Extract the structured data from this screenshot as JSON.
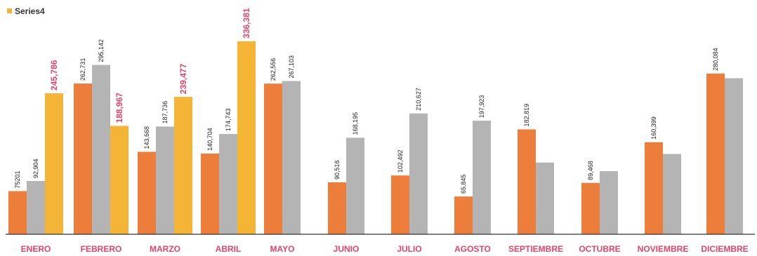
{
  "chart_data": {
    "type": "bar",
    "title": "",
    "xlabel": "",
    "ylabel": "",
    "ylim": [
      0,
      350000
    ],
    "grid": false,
    "legend_position": "top-left",
    "categories": [
      "ENERO",
      "FEBRERO",
      "MARZO",
      "ABRIL",
      "MAYO",
      "JUNIO",
      "JULIO",
      "AGOSTO",
      "SEPTIEMBRE",
      "OCTUBRE",
      "NOVIEMBRE",
      "DICIEMBRE"
    ],
    "series": [
      {
        "color": "#ED7D3A",
        "values": [
          75201,
          262731,
          143668,
          140704,
          262556,
          90516,
          102492,
          65845,
          182819,
          89468,
          160399,
          280084
        ],
        "labels": [
          "75201",
          "262,731",
          "143,668",
          "140,704",
          "262,556",
          "90,516",
          "102,492",
          "65,845",
          "182,819",
          "89,468",
          "160,399",
          "280,084"
        ]
      },
      {
        "color": "#B4B4B4",
        "values": [
          92904,
          295142,
          187736,
          174743,
          267103,
          168195,
          210627,
          197923,
          125000,
          110000,
          140000,
          272000
        ],
        "labels": [
          "92,904",
          "295,142",
          "187,736",
          "174,743",
          "267,103",
          "168,195",
          "210,627",
          "197,923",
          "",
          "",
          "",
          ""
        ]
      },
      {
        "name": "Series4",
        "color": "#F4B436",
        "values": [
          245786,
          188967,
          239477,
          336381,
          null,
          null,
          null,
          null,
          null,
          null,
          null,
          null
        ],
        "labels": [
          "245,786",
          "188,967",
          "239,477",
          "336,381",
          "",
          "",
          "",
          "",
          "",
          "",
          "",
          ""
        ]
      }
    ]
  },
  "colors": {
    "category_label": "#E8426A",
    "highlight_label": "#E8426A",
    "baseline": "#333333"
  }
}
